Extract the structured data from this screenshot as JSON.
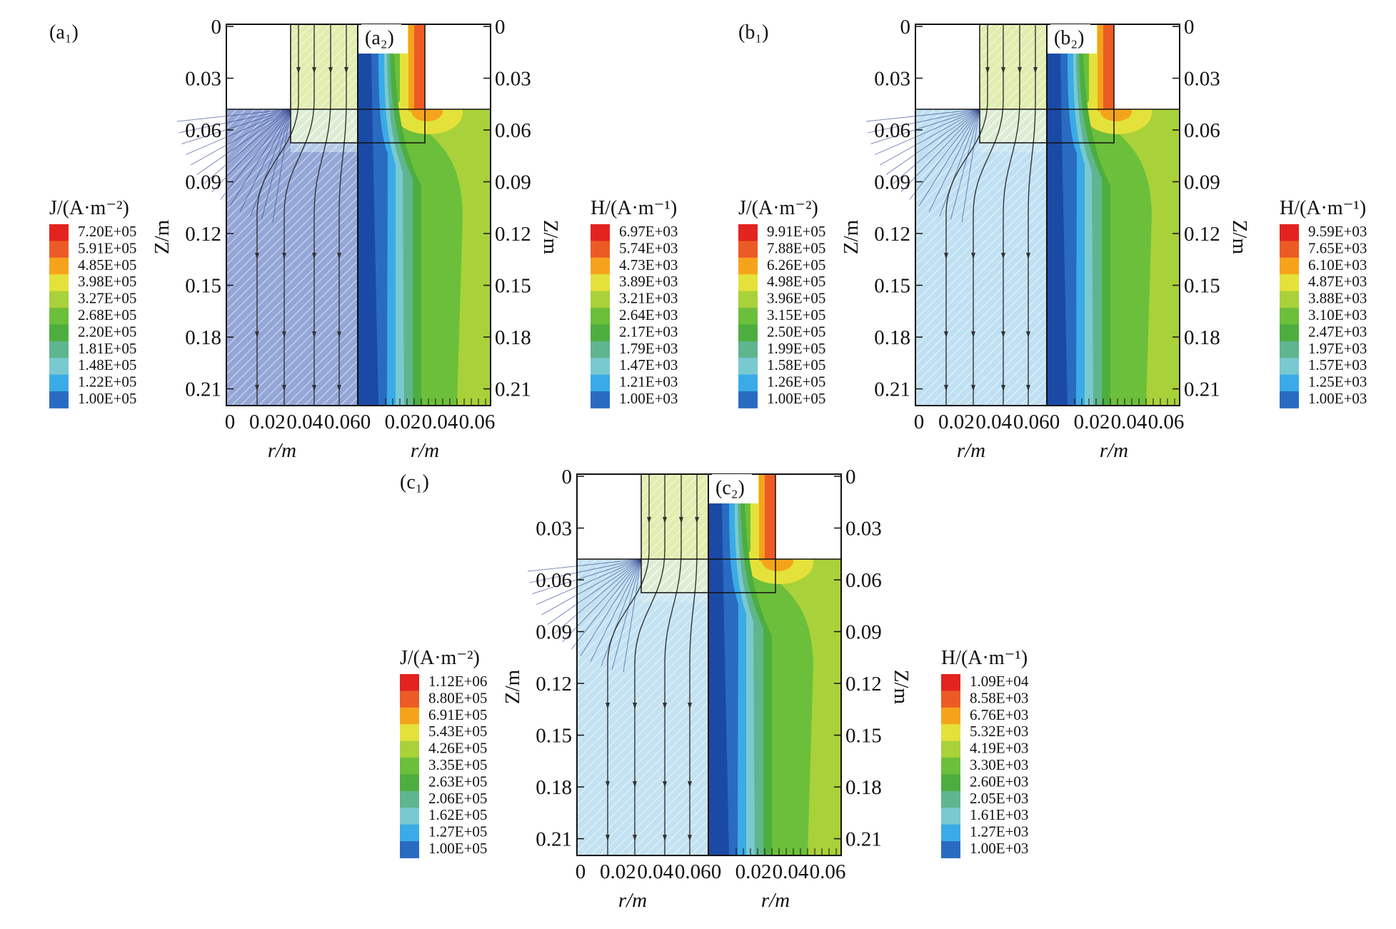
{
  "axes": {
    "z_ticks": [
      "0",
      "0.03",
      "0.06",
      "0.09",
      "0.12",
      "0.15",
      "0.18",
      "0.21"
    ],
    "r_ticks": [
      "0",
      "0.02",
      "0.04",
      "0.06"
    ],
    "xlabel": "r/m",
    "ylabel": "Z/m"
  },
  "chart_data": [
    {
      "type": "heatmap",
      "panel_left_label": "(a₁)",
      "panel_right_label": "(a₂)",
      "xlabel": "r/m",
      "ylabel": "Z/m",
      "xlim": [
        0,
        0.065
      ],
      "ylim": [
        0.22,
        0
      ],
      "j_legend": {
        "title": "J/(A·m⁻²)",
        "levels": [
          "7.20E+05",
          "5.91E+05",
          "4.85E+05",
          "3.98E+05",
          "3.27E+05",
          "2.68E+05",
          "2.20E+05",
          "1.81E+05",
          "1.48E+05",
          "1.22E+05",
          "1.00E+05"
        ]
      },
      "h_legend": {
        "title": "H/(A·m⁻¹)",
        "levels": [
          "6.97E+03",
          "5.74E+03",
          "4.73E+03",
          "3.89E+03",
          "3.21E+03",
          "2.64E+03",
          "2.17E+03",
          "1.79E+03",
          "1.47E+03",
          "1.21E+03",
          "1.00E+03"
        ]
      }
    },
    {
      "type": "heatmap",
      "panel_left_label": "(b₁)",
      "panel_right_label": "(b₂)",
      "xlabel": "r/m",
      "ylabel": "Z/m",
      "xlim": [
        0,
        0.065
      ],
      "ylim": [
        0.22,
        0
      ],
      "j_legend": {
        "title": "J/(A·m⁻²)",
        "levels": [
          "9.91E+05",
          "7.88E+05",
          "6.26E+05",
          "4.98E+05",
          "3.96E+05",
          "3.15E+05",
          "2.50E+05",
          "1.99E+05",
          "1.58E+05",
          "1.26E+05",
          "1.00E+05"
        ]
      },
      "h_legend": {
        "title": "H/(A·m⁻¹)",
        "levels": [
          "9.59E+03",
          "7.65E+03",
          "6.10E+03",
          "4.87E+03",
          "3.88E+03",
          "3.10E+03",
          "2.47E+03",
          "1.97E+03",
          "1.57E+03",
          "1.25E+03",
          "1.00E+03"
        ]
      }
    },
    {
      "type": "heatmap",
      "panel_left_label": "(c₁)",
      "panel_right_label": "(c₂)",
      "xlabel": "r/m",
      "ylabel": "Z/m",
      "xlim": [
        0,
        0.065
      ],
      "ylim": [
        0.22,
        0
      ],
      "j_legend": {
        "title": "J/(A·m⁻²)",
        "levels": [
          "1.12E+06",
          "8.80E+05",
          "6.91E+05",
          "5.43E+05",
          "4.26E+05",
          "3.35E+05",
          "2.63E+05",
          "2.06E+05",
          "1.62E+05",
          "1.27E+05",
          "1.00E+05"
        ]
      },
      "h_legend": {
        "title": "H/(A·m⁻¹)",
        "levels": [
          "1.09E+04",
          "8.58E+03",
          "6.76E+03",
          "5.32E+03",
          "4.19E+03",
          "3.30E+03",
          "2.60E+03",
          "2.05E+03",
          "1.61E+03",
          "1.27E+03",
          "1.00E+03"
        ]
      }
    }
  ],
  "colors": {
    "scale": [
      "#e3231f",
      "#ec5b25",
      "#f6a31c",
      "#e4e23a",
      "#a9d13a",
      "#6cbf3a",
      "#4dae3f",
      "#5fb58e",
      "#79c9d0",
      "#3aabe6",
      "#2a6bc2"
    ],
    "j_lower_region": [
      "#93a6d6",
      "#bfe0f2",
      "#c3e2f2"
    ],
    "coil_region": "#e2edb0"
  }
}
